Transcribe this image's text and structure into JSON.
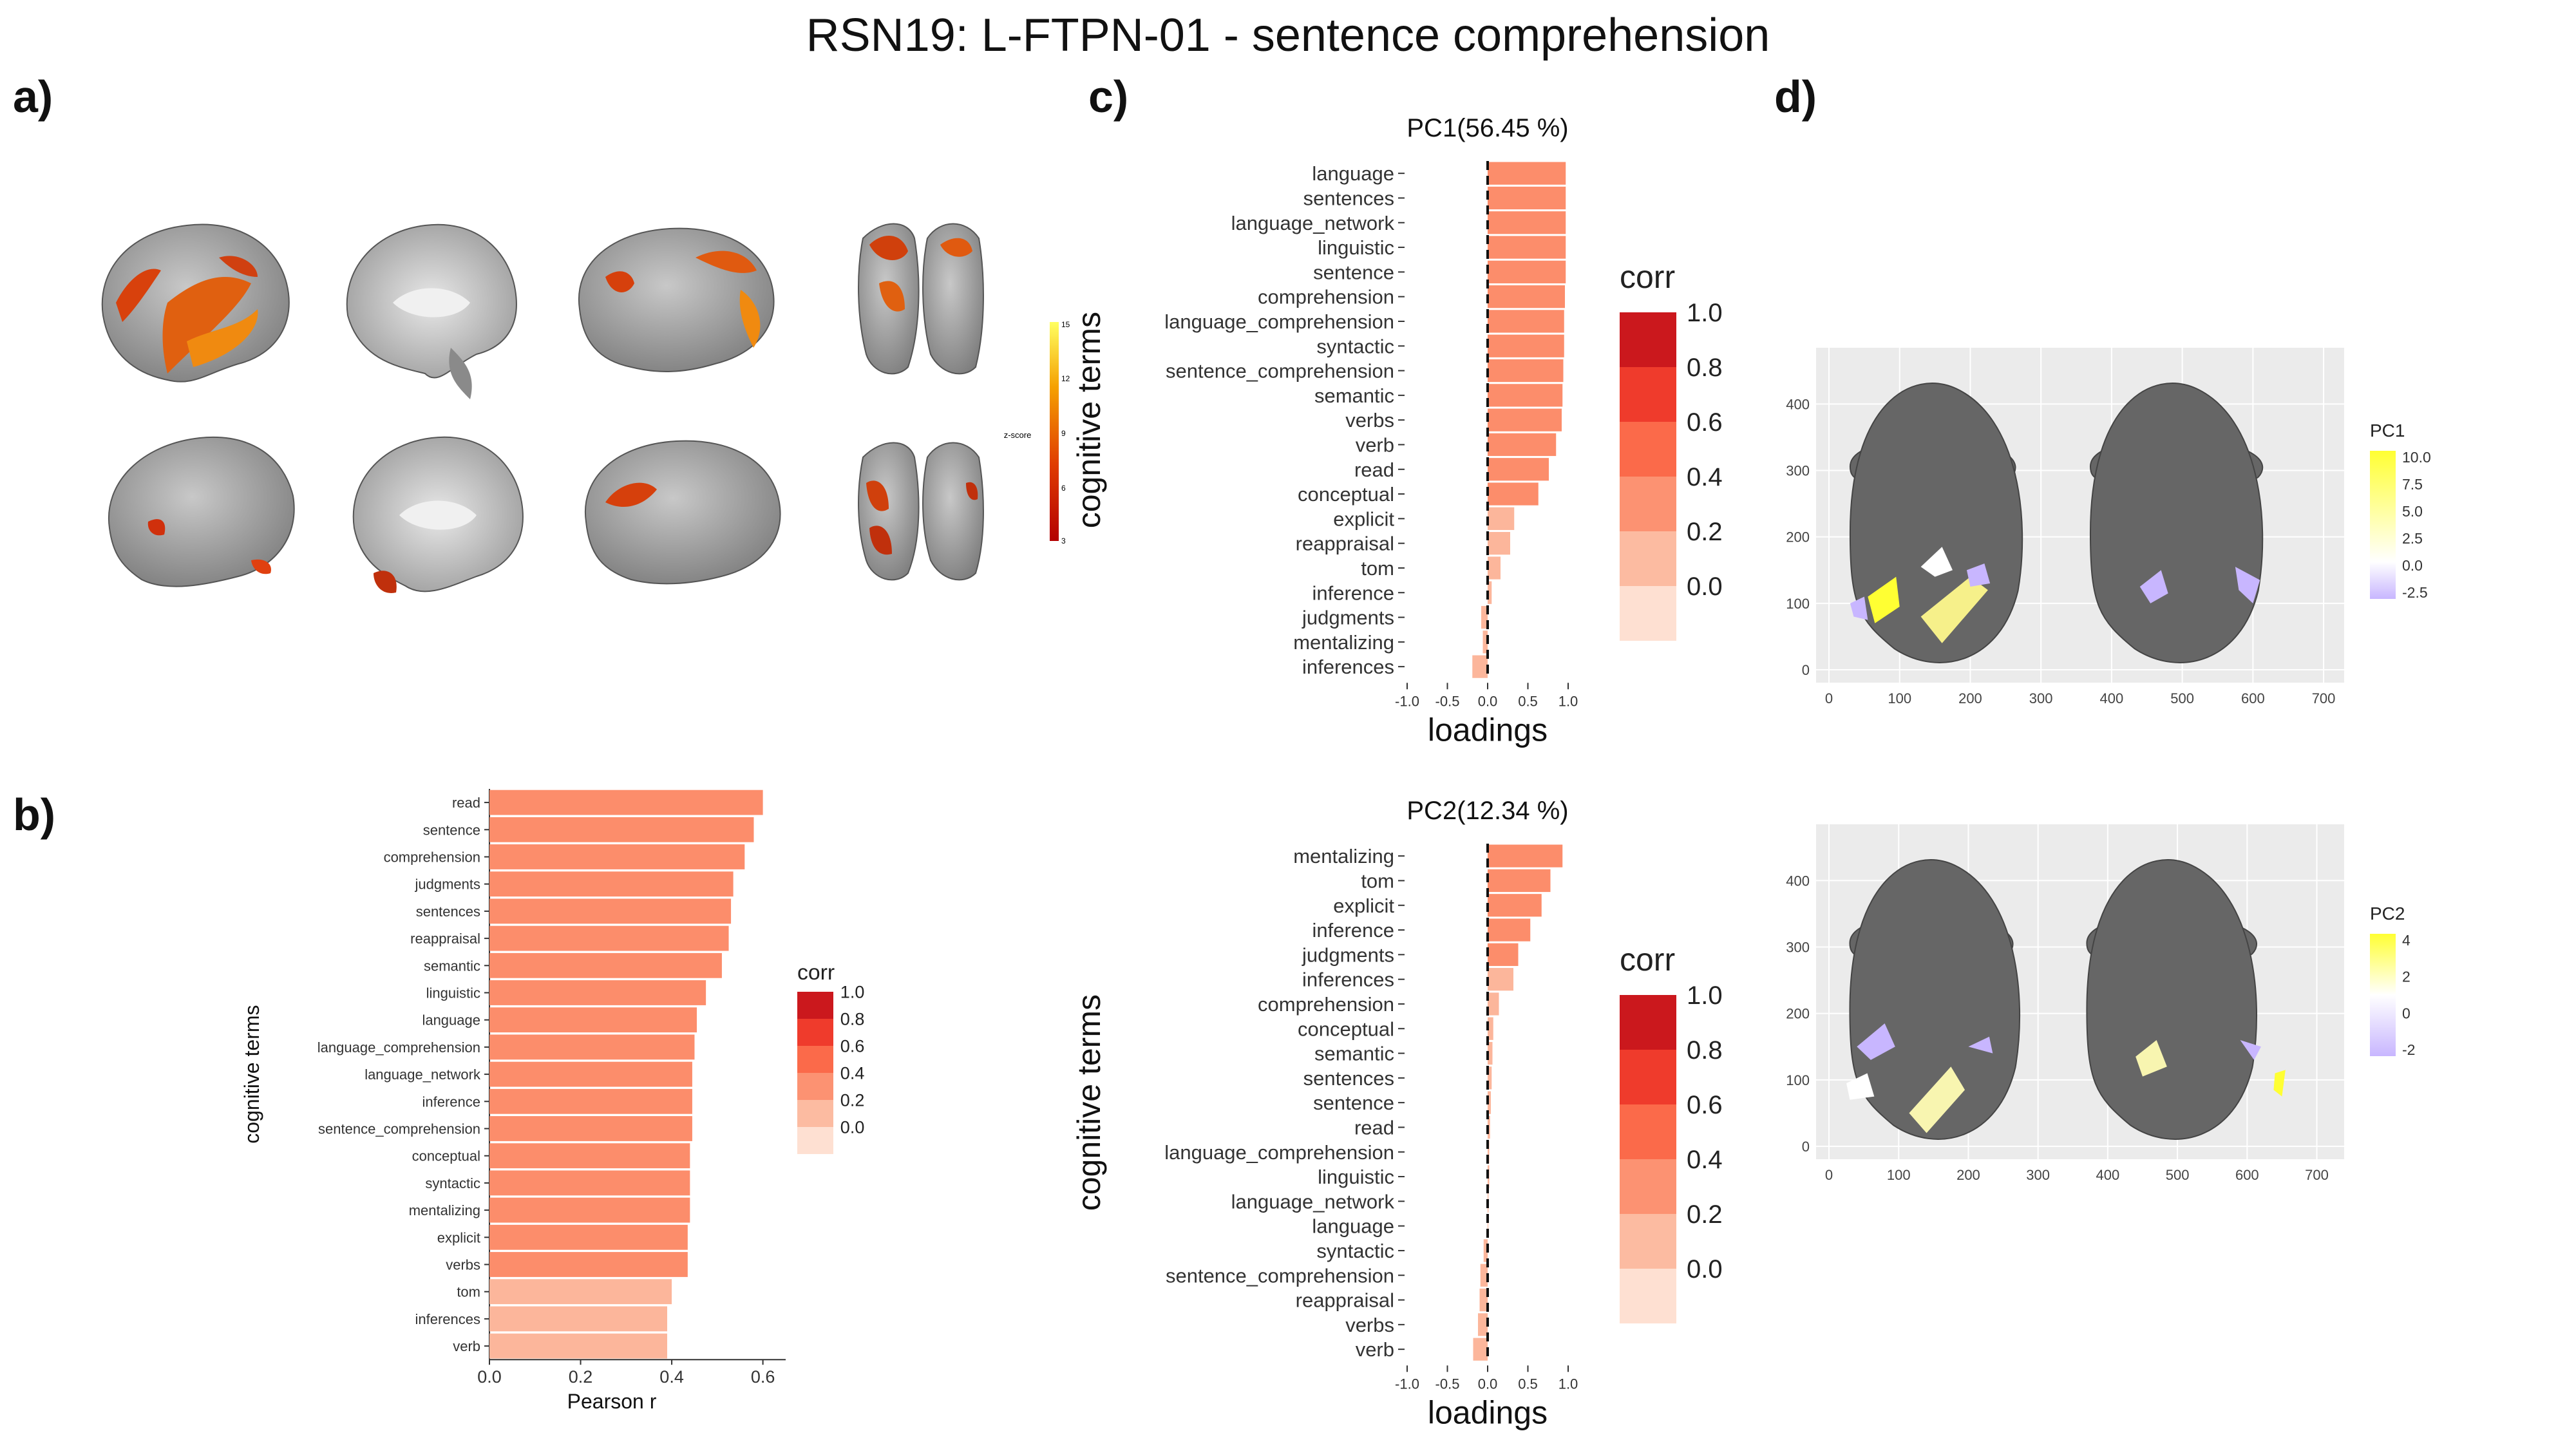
{
  "title": "RSN19: L-FTPN-01 - sentence comprehension",
  "panel_labels": [
    "a)",
    "b)",
    "c)",
    "d)"
  ],
  "colors": {
    "corr_scale": [
      "#fee0d2",
      "#fcbba1",
      "#fc9272",
      "#fb6a4a",
      "#ef3b2c",
      "#cb181d"
    ],
    "bar_salmon": "#fc8d6b",
    "bar_light": "#fcb69b",
    "panel_bg": "#ebebeb",
    "brain_gray": "#666666",
    "pc_high": "#ffff33",
    "pc_low": "#c8b6ff"
  },
  "panel_a": {
    "colorbar_label": "z-score",
    "colorbar_ticks": [
      "15",
      "12",
      "9",
      "6",
      "3"
    ]
  },
  "chart_data": [
    {
      "id": "b",
      "type": "bar",
      "orientation": "horizontal",
      "xlabel": "Pearson r",
      "ylabel": "cognitive terms",
      "xlim": [
        0,
        0.65
      ],
      "xticks": [
        "0.0",
        "0.2",
        "0.4",
        "0.6"
      ],
      "legend": {
        "title": "corr",
        "labels": [
          "1.0",
          "0.8",
          "0.6",
          "0.4",
          "0.2",
          "0.0"
        ],
        "placement": "right"
      },
      "categories": [
        "read",
        "sentence",
        "comprehension",
        "judgments",
        "sentences",
        "reappraisal",
        "semantic",
        "linguistic",
        "language",
        "language_comprehension",
        "language_network",
        "inference",
        "sentence_comprehension",
        "conceptual",
        "syntactic",
        "mentalizing",
        "explicit",
        "verbs",
        "tom",
        "inferences",
        "verb"
      ],
      "values": [
        0.6,
        0.58,
        0.56,
        0.535,
        0.53,
        0.525,
        0.51,
        0.475,
        0.455,
        0.45,
        0.445,
        0.445,
        0.445,
        0.44,
        0.44,
        0.44,
        0.435,
        0.435,
        0.4,
        0.39,
        0.39
      ]
    },
    {
      "id": "c1",
      "type": "bar",
      "orientation": "horizontal",
      "title": "PC1(56.45 %)",
      "xlabel": "loadings",
      "ylabel": "cognitive terms",
      "xlim": [
        -1.0,
        1.0
      ],
      "xticks": [
        "-1.0",
        "-0.5",
        "0.0",
        "0.5",
        "1.0"
      ],
      "legend": {
        "title": "corr",
        "labels": [
          "1.0",
          "0.8",
          "0.6",
          "0.4",
          "0.2",
          "0.0"
        ],
        "placement": "right"
      },
      "categories": [
        "language",
        "sentences",
        "language_network",
        "linguistic",
        "sentence",
        "comprehension",
        "language_comprehension",
        "syntactic",
        "sentence_comprehension",
        "semantic",
        "verbs",
        "verb",
        "read",
        "conceptual",
        "explicit",
        "reappraisal",
        "tom",
        "inference",
        "judgments",
        "mentalizing",
        "inferences"
      ],
      "values": [
        0.97,
        0.97,
        0.97,
        0.97,
        0.97,
        0.96,
        0.95,
        0.95,
        0.94,
        0.93,
        0.92,
        0.85,
        0.76,
        0.63,
        0.33,
        0.28,
        0.16,
        0.05,
        -0.08,
        -0.06,
        -0.19
      ]
    },
    {
      "id": "c2",
      "type": "bar",
      "orientation": "horizontal",
      "title": "PC2(12.34 %)",
      "xlabel": "loadings",
      "ylabel": "cognitive terms",
      "xlim": [
        -1.0,
        1.0
      ],
      "xticks": [
        "-1.0",
        "-0.5",
        "0.0",
        "0.5",
        "1.0"
      ],
      "legend": {
        "title": "corr",
        "labels": [
          "1.0",
          "0.8",
          "0.6",
          "0.4",
          "0.2",
          "0.0"
        ],
        "placement": "right"
      },
      "categories": [
        "mentalizing",
        "tom",
        "explicit",
        "inference",
        "judgments",
        "inferences",
        "comprehension",
        "conceptual",
        "semantic",
        "sentences",
        "sentence",
        "read",
        "language_comprehension",
        "linguistic",
        "language_network",
        "language",
        "syntactic",
        "sentence_comprehension",
        "reappraisal",
        "verbs",
        "verb"
      ],
      "values": [
        0.93,
        0.78,
        0.67,
        0.53,
        0.38,
        0.32,
        0.14,
        0.07,
        0.06,
        0.05,
        0.04,
        0.03,
        0.02,
        0.02,
        0.01,
        0.0,
        -0.05,
        -0.09,
        -0.1,
        -0.12,
        -0.18
      ]
    },
    {
      "id": "d1",
      "type": "heatmap",
      "xticks": [
        "0",
        "100",
        "200",
        "300",
        "400",
        "500",
        "600",
        "700"
      ],
      "yticks": [
        "0",
        "100",
        "200",
        "300",
        "400"
      ],
      "legend": {
        "title": "PC1",
        "labels": [
          "10.0",
          "7.5",
          "5.0",
          "2.5",
          "0.0",
          "-2.5"
        ],
        "placement": "right"
      }
    },
    {
      "id": "d2",
      "type": "heatmap",
      "xticks": [
        "0",
        "100",
        "200",
        "300",
        "400",
        "500",
        "600",
        "700"
      ],
      "yticks": [
        "0",
        "100",
        "200",
        "300",
        "400"
      ],
      "legend": {
        "title": "PC2",
        "labels": [
          "4",
          "2",
          "0",
          "-2"
        ],
        "placement": "right"
      }
    }
  ]
}
